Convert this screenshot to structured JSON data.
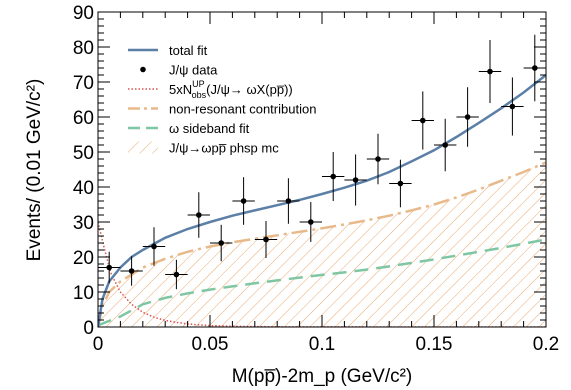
{
  "chart_data": {
    "type": "scatter",
    "xlabel": "M(pp̅)-2m_p (GeV/c²)",
    "ylabel": "Events/ (0.01 GeV/c²)",
    "xlim": [
      0,
      0.2
    ],
    "ylim": [
      0,
      90
    ],
    "x_ticks": [
      "0",
      "0.05",
      "0.1",
      "0.15",
      "0.2"
    ],
    "x_tick_values": [
      0,
      0.05,
      0.1,
      0.15,
      0.2
    ],
    "y_ticks": [
      "0",
      "10",
      "20",
      "30",
      "40",
      "50",
      "60",
      "70",
      "80",
      "90"
    ],
    "y_tick_values": [
      0,
      10,
      20,
      30,
      40,
      50,
      60,
      70,
      80,
      90
    ],
    "grid": false,
    "legend_position": "top-left",
    "legend": [
      {
        "key": "total_fit",
        "label": "total fit"
      },
      {
        "key": "data",
        "label": "J/ψ data"
      },
      {
        "key": "upper_limit",
        "label": "5xN",
        "label_sup": "UP",
        "label_sub": "obs",
        "label_tail": "(J/ψ→ ωX(pp̅))"
      },
      {
        "key": "nonres",
        "label": "non-resonant contribution"
      },
      {
        "key": "sideband",
        "label": "ω sideband fit"
      },
      {
        "key": "phsp",
        "label": "J/ψ→ωpp̅ phsp mc"
      }
    ],
    "colors": {
      "total_fit": "#5b7fa6",
      "data": "#000000",
      "upper_limit": "#d9534f",
      "nonres": "#e8b98a",
      "sideband": "#7fc7a3",
      "phsp": "#e8a870"
    },
    "data_points": {
      "x": [
        0.005,
        0.015,
        0.025,
        0.035,
        0.045,
        0.055,
        0.065,
        0.075,
        0.085,
        0.095,
        0.105,
        0.115,
        0.125,
        0.135,
        0.145,
        0.155,
        0.165,
        0.175,
        0.185,
        0.195
      ],
      "y": [
        17,
        16,
        23,
        15,
        32,
        24,
        36,
        25,
        36,
        30,
        43,
        42,
        48,
        41,
        59,
        52,
        60,
        73,
        63,
        74
      ],
      "yerr": [
        4.5,
        4.2,
        5.5,
        4.2,
        6.5,
        5.2,
        6.8,
        5.3,
        6.5,
        5.7,
        7.0,
        7.3,
        7.2,
        6.8,
        8.3,
        7.5,
        8.5,
        9.0,
        8.3,
        9.5
      ],
      "xerr": 0.005
    },
    "series": [
      {
        "key": "total_fit",
        "x": [
          0,
          0.002,
          0.005,
          0.01,
          0.015,
          0.02,
          0.03,
          0.04,
          0.05,
          0.06,
          0.07,
          0.08,
          0.09,
          0.1,
          0.11,
          0.12,
          0.13,
          0.14,
          0.15,
          0.16,
          0.17,
          0.18,
          0.19,
          0.2
        ],
        "y": [
          0,
          8,
          13,
          17,
          20,
          22,
          25.5,
          28,
          30,
          31.8,
          33.3,
          34.8,
          36.3,
          38,
          39.8,
          41.8,
          44.3,
          47.3,
          50.5,
          54.3,
          58.3,
          62.5,
          67,
          72
        ]
      },
      {
        "key": "nonres",
        "x": [
          0,
          0.002,
          0.005,
          0.01,
          0.02,
          0.03,
          0.04,
          0.05,
          0.06,
          0.07,
          0.08,
          0.09,
          0.1,
          0.11,
          0.12,
          0.13,
          0.14,
          0.15,
          0.16,
          0.17,
          0.18,
          0.19,
          0.2
        ],
        "y": [
          0,
          6,
          10,
          13,
          17,
          19.5,
          21.5,
          23,
          24.2,
          25.2,
          26.2,
          27.2,
          28.2,
          29.3,
          30.5,
          31.8,
          33.3,
          35,
          37,
          39.3,
          41.8,
          44.3,
          47
        ]
      },
      {
        "key": "sideband",
        "x": [
          0,
          0.01,
          0.02,
          0.03,
          0.04,
          0.05,
          0.06,
          0.07,
          0.08,
          0.09,
          0.1,
          0.11,
          0.12,
          0.13,
          0.14,
          0.15,
          0.16,
          0.17,
          0.18,
          0.19,
          0.2
        ],
        "y": [
          0.5,
          3,
          6.5,
          8.3,
          9.6,
          10.7,
          11.6,
          12.5,
          13.3,
          14.1,
          14.9,
          15.6,
          16.4,
          17.3,
          18.3,
          19.3,
          20.4,
          21.5,
          22.6,
          23.8,
          25
        ]
      },
      {
        "key": "upper_limit",
        "x": [
          0,
          0.003,
          0.006,
          0.01,
          0.015,
          0.02,
          0.025,
          0.03,
          0.035,
          0.04,
          0.045,
          0.05,
          0.06,
          0.07,
          0.08,
          0.1,
          0.15,
          0.2
        ],
        "y": [
          30,
          22,
          15,
          10,
          6.5,
          4.2,
          2.8,
          1.9,
          1.3,
          0.9,
          0.6,
          0.4,
          0.2,
          0.1,
          0.05,
          0.02,
          0,
          0
        ]
      },
      {
        "key": "phsp",
        "x": [
          0,
          0.002,
          0.005,
          0.01,
          0.02,
          0.03,
          0.04,
          0.05,
          0.06,
          0.07,
          0.08,
          0.09,
          0.1,
          0.11,
          0.12,
          0.13,
          0.14,
          0.15,
          0.16,
          0.17,
          0.18,
          0.19,
          0.2
        ],
        "y": [
          0,
          6,
          10,
          13,
          17,
          19.5,
          21.5,
          23,
          24.2,
          25.2,
          26.2,
          27.2,
          28.2,
          29.3,
          30.5,
          31.8,
          33.3,
          35,
          37,
          39.3,
          41.8,
          44.3,
          47
        ]
      }
    ]
  }
}
